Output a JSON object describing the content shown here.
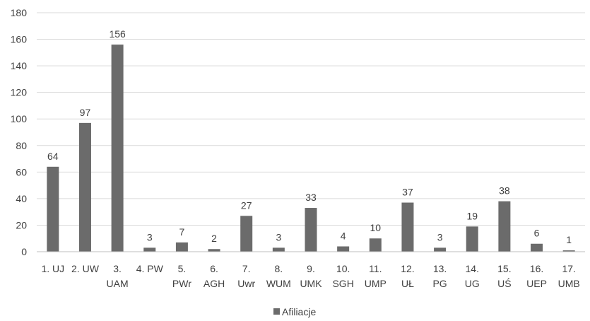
{
  "chart_data": {
    "type": "bar",
    "categories": [
      [
        "1. UJ"
      ],
      [
        "2. UW"
      ],
      [
        "3.",
        "UAM"
      ],
      [
        "4. PW"
      ],
      [
        "5.",
        "PWr"
      ],
      [
        "6.",
        "AGH"
      ],
      [
        "7.",
        "Uwr"
      ],
      [
        "8.",
        "WUM"
      ],
      [
        "9.",
        "UMK"
      ],
      [
        "10.",
        "SGH"
      ],
      [
        "11.",
        "UMP"
      ],
      [
        "12.",
        "UŁ"
      ],
      [
        "13.",
        "PG"
      ],
      [
        "14.",
        "UG"
      ],
      [
        "15.",
        "UŚ"
      ],
      [
        "16.",
        "UEP"
      ],
      [
        "17.",
        "UMB"
      ]
    ],
    "series": [
      {
        "name": "Afiliacje",
        "values": [
          64,
          97,
          156,
          3,
          7,
          2,
          27,
          3,
          33,
          4,
          10,
          37,
          3,
          19,
          38,
          6,
          1
        ],
        "color": "#6b6b6b"
      }
    ],
    "ylim": [
      0,
      180
    ],
    "yticks": [
      0,
      20,
      40,
      60,
      80,
      100,
      120,
      140,
      160,
      180
    ],
    "grid": true,
    "legend_position": "bottom"
  }
}
